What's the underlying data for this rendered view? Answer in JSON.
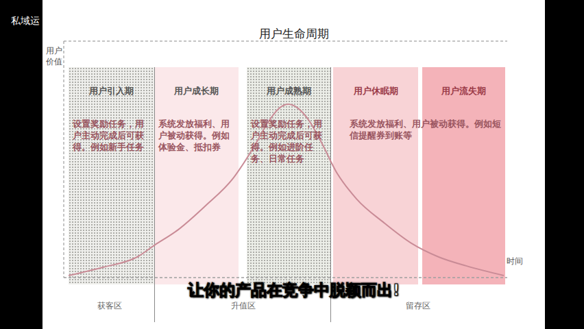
{
  "corner_text": "私域运",
  "caption": "让你的产品在竞争中脱颖而出!",
  "chart_data": {
    "type": "line",
    "title": "用户生命周期",
    "y_label": "用户价值",
    "x_label": "时间",
    "x": [
      0.23,
      1.85,
      3.47,
      4.29,
      5.42,
      6.72,
      8.02,
      8.99,
      9.64,
      10.13,
      10.62,
      11.1,
      11.59,
      12.24,
      12.89,
      13.86,
      15.16,
      16.46,
      17.76,
      19.06,
      20.84
    ],
    "values": [
      -1.4,
      -1.0,
      -0.5,
      0.07,
      0.83,
      2.0,
      3.33,
      4.83,
      6.0,
      6.67,
      6.93,
      6.73,
      6.17,
      5.0,
      3.67,
      2.33,
      1.17,
      0.17,
      -0.5,
      -0.93,
      -1.4
    ],
    "color": "#c98b96",
    "xlim": [
      0,
      21
    ],
    "ylim": [
      -1.5,
      10
    ],
    "yticks": [
      0
    ],
    "grid": true,
    "tick_labels": false,
    "stages": [
      {
        "name": "用户引入期",
        "text": "设置奖励任务，用户主动完成后可获得。例如新手任务",
        "color": "#efefec"
      },
      {
        "name": "用户成长期",
        "text": "系统发放福利、用户被动获得。例如体验金、抵扣券",
        "color": "#fbe8ea"
      },
      {
        "name": "用户成熟期",
        "text": "设置奖励任务，用户主动完成后可获得。例如进阶任务、日常任务",
        "color": "#eceee8"
      },
      {
        "name": "用户休眠期",
        "text": "系统发放福利、用户被动获得。例如短信提醒券到账等",
        "color": "#f8d3d6"
      },
      {
        "name": "用户流失期",
        "color": "#f4b3b9"
      }
    ],
    "zones": [
      "获客区",
      "升值区",
      "留存区"
    ]
  }
}
